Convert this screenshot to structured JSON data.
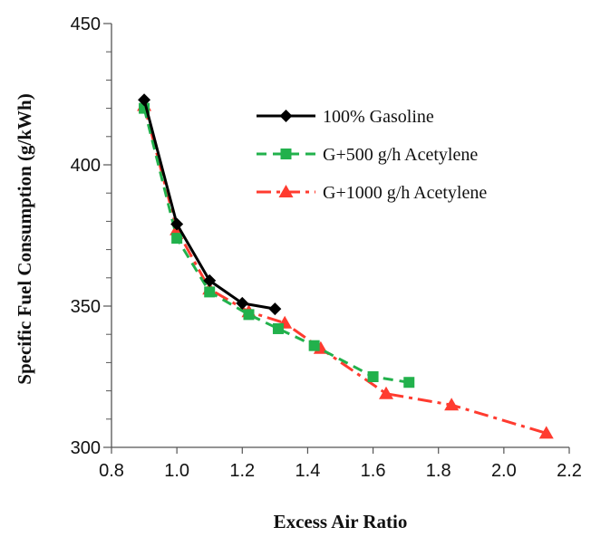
{
  "chart_data": {
    "type": "line",
    "xlabel": "Excess Air Ratio",
    "ylabel": "Specific Fuel Consumption (g/kWh)",
    "xlim": [
      0.8,
      2.2
    ],
    "ylim": [
      300,
      450
    ],
    "x_ticks": [
      0.8,
      1.0,
      1.2,
      1.4,
      1.6,
      1.8,
      2.0,
      2.2
    ],
    "x_tick_labels": [
      "0.8",
      "1.0",
      "1.2",
      "1.4",
      "1.6",
      "1.8",
      "2.0",
      "2.2"
    ],
    "y_ticks": [
      300,
      350,
      400,
      450
    ],
    "y_tick_labels": [
      "300",
      "350",
      "400",
      "450"
    ],
    "y_minor_step": 10,
    "grid": false,
    "legend_position": "top-right",
    "series": [
      {
        "name": "100% Gasoline",
        "color": "#000000",
        "marker": "diamond",
        "dash": "solid",
        "x": [
          0.9,
          1.0,
          1.1,
          1.2,
          1.3
        ],
        "y": [
          423,
          379,
          359,
          351,
          349
        ]
      },
      {
        "name": "G+500 g/h Acetylene",
        "color": "#22b14c",
        "marker": "square",
        "dash": "dashed",
        "x": [
          0.9,
          1.0,
          1.1,
          1.22,
          1.31,
          1.42,
          1.6,
          1.71
        ],
        "y": [
          420,
          374,
          355,
          347,
          342,
          336,
          325,
          323
        ]
      },
      {
        "name": "G+1000 g/h Acetylene",
        "color": "#ff3b2f",
        "marker": "triangle",
        "dash": "dashdot",
        "x": [
          0.9,
          1.0,
          1.1,
          1.22,
          1.33,
          1.44,
          1.64,
          1.84,
          2.13
        ],
        "y": [
          421,
          377,
          356,
          348,
          344,
          335,
          319,
          315,
          305
        ]
      }
    ]
  }
}
